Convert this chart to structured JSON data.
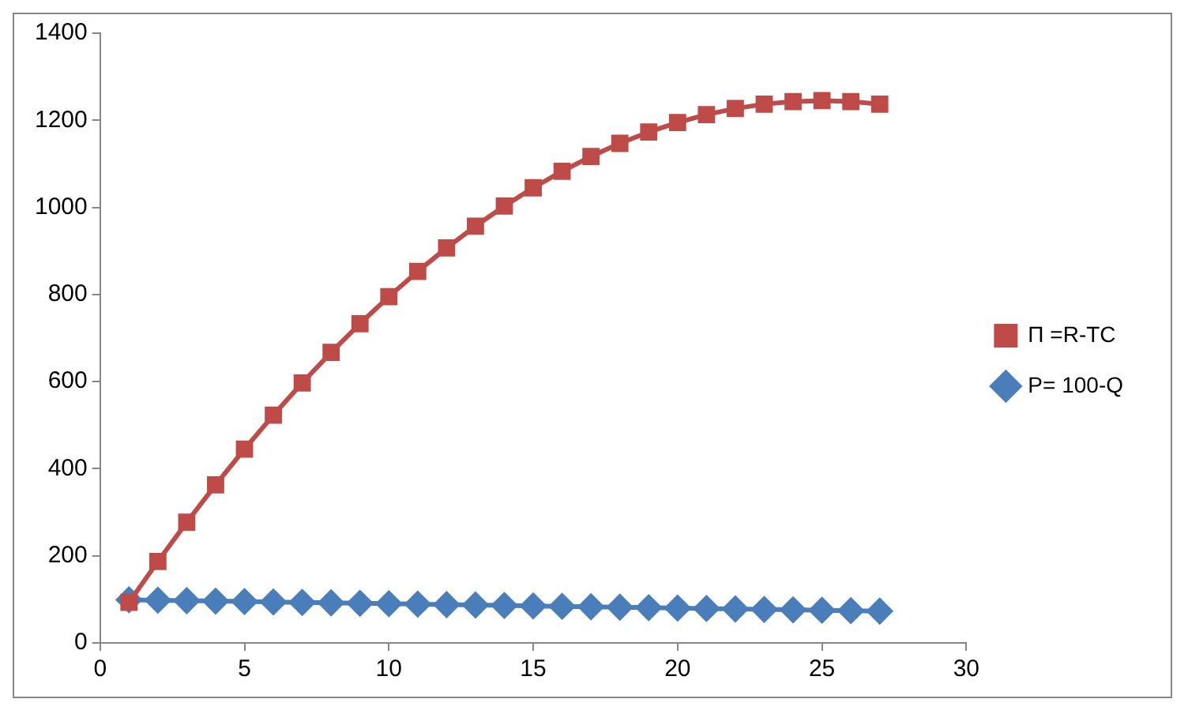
{
  "chart_data": {
    "type": "line",
    "x": [
      1,
      2,
      3,
      4,
      5,
      6,
      7,
      8,
      9,
      10,
      11,
      12,
      13,
      14,
      15,
      16,
      17,
      18,
      19,
      20,
      21,
      22,
      23,
      24,
      25,
      26,
      27
    ],
    "series": [
      {
        "name": "P= 100-Q",
        "color": "#4a7ebb",
        "marker": "diamond",
        "values": [
          99,
          98,
          97,
          96,
          95,
          94,
          93,
          92,
          91,
          90,
          89,
          88,
          87,
          86,
          85,
          84,
          83,
          82,
          81,
          80,
          79,
          78,
          77,
          76,
          75,
          74,
          73
        ]
      },
      {
        "name": "Π =R-TC",
        "color": "#be4b48",
        "marker": "square",
        "values": [
          93,
          187,
          277,
          363,
          445,
          523,
          597,
          667,
          733,
          795,
          853,
          907,
          957,
          1003,
          1045,
          1083,
          1117,
          1147,
          1173,
          1195,
          1213,
          1227,
          1237,
          1243,
          1245,
          1243,
          1237
        ]
      }
    ],
    "xlim": [
      0,
      30
    ],
    "xticks": [
      0,
      5,
      10,
      15,
      20,
      25,
      30
    ],
    "ylim": [
      0,
      1400
    ],
    "yticks": [
      0,
      200,
      400,
      600,
      800,
      1000,
      1200,
      1400
    ],
    "grid": false,
    "legend": "right"
  }
}
